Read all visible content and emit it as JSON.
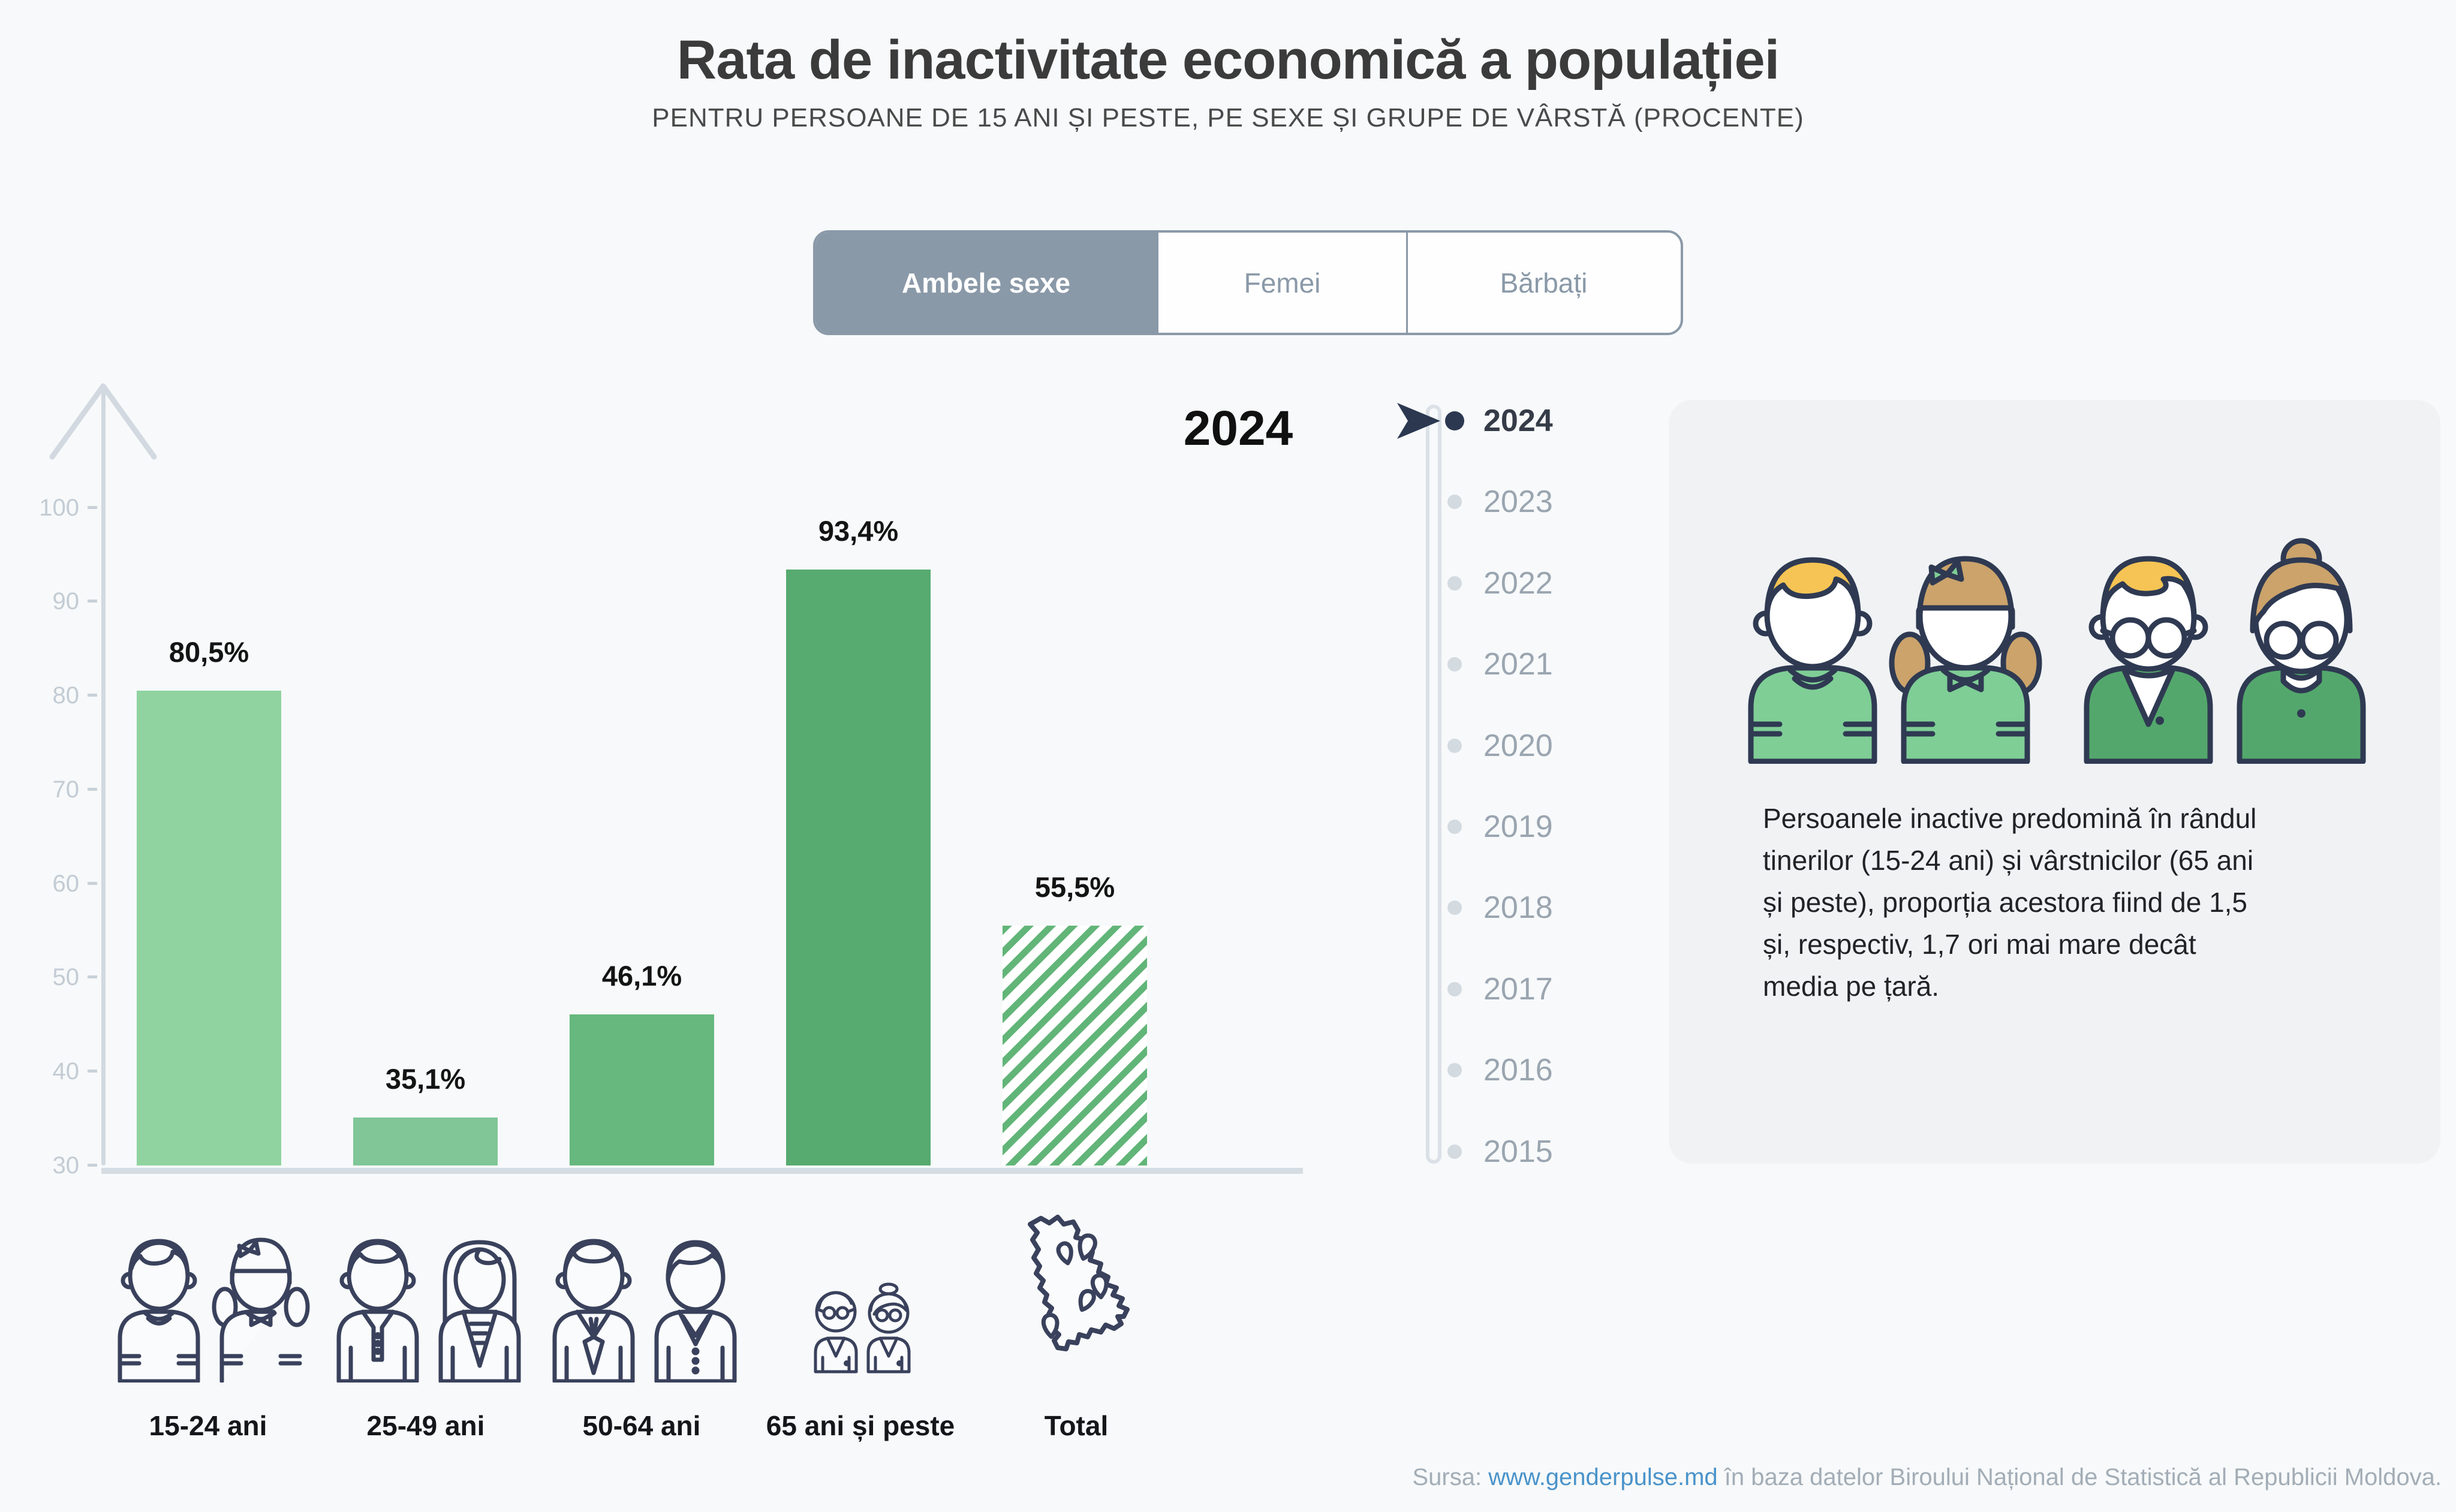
{
  "title": "Rata de inactivitate economică a populației",
  "subtitle": "PENTRU PERSOANE DE 15 ANI ȘI PESTE, PE SEXE ȘI GRUPE DE VÂRSTĂ (PROCENTE)",
  "tabs": {
    "items": [
      {
        "label": "Ambele sexe",
        "active": true
      },
      {
        "label": "Femei",
        "active": false
      },
      {
        "label": "Bărbați",
        "active": false
      }
    ]
  },
  "chart_data": {
    "type": "bar",
    "title": "Rata de inactivitate economică a populației",
    "subtitle": "Pentru persoane de 15 ani și peste, pe sexe și grupe de vârstă (procente)",
    "year_label": "2024",
    "categories": [
      "15-24 ani",
      "25-49 ani",
      "50-64 ani",
      "65 ani și peste",
      "Total"
    ],
    "values": [
      80.5,
      35.1,
      46.1,
      93.4,
      55.5
    ],
    "value_labels": [
      "80,5%",
      "35,1%",
      "46,1%",
      "93,4%",
      "55,5%"
    ],
    "ylim": [
      30,
      100
    ],
    "yticks": [
      30,
      40,
      50,
      60,
      70,
      80,
      90,
      100
    ],
    "ylabel": "",
    "xlabel": "",
    "grid": false,
    "legend_position": "none",
    "bar_styles": [
      "solid",
      "solid",
      "solid",
      "solid",
      "hatched"
    ],
    "bar_colors": [
      "#90d3a0",
      "#80c697",
      "#66b87e",
      "#57aa70",
      "#62b578"
    ]
  },
  "timeline": {
    "years": [
      "2024",
      "2023",
      "2022",
      "2021",
      "2020",
      "2019",
      "2018",
      "2017",
      "2016",
      "2015"
    ],
    "active_year": "2024"
  },
  "info_panel": {
    "text": "Persoanele inactive predomină în rândul\ntinerilor (15-24 ani) și vârstnicilor (65 ani\nși peste), proporția acestora fiind de 1,5\nși, respectiv, 1,7 ori mai mare decât\nmedia pe țară."
  },
  "source": {
    "prefix": "Sursa:",
    "link": "www.genderpulse.md",
    "suffix": "în baza datelor Biroului Național de Statistică al Republicii Moldova."
  },
  "colors": {
    "background": "#f7f9fa",
    "accent_slate": "#8a99a8",
    "axis": "#d2d9e0",
    "tick_text": "#c3ccd4",
    "bar_label": "#141414",
    "timeline_active": "#2b3850",
    "timeline_idle": "#9aa5b0",
    "card_bg": "#f0f2f4",
    "icon_outline": "#39415c",
    "shirt_light_green": "#7fce96",
    "jacket_dark_green": "#53a76c",
    "hair_blond": "#f5c454",
    "hair_tan": "#cba36b",
    "link_blue": "#4a93ca",
    "source_gray": "#a3adb6"
  }
}
